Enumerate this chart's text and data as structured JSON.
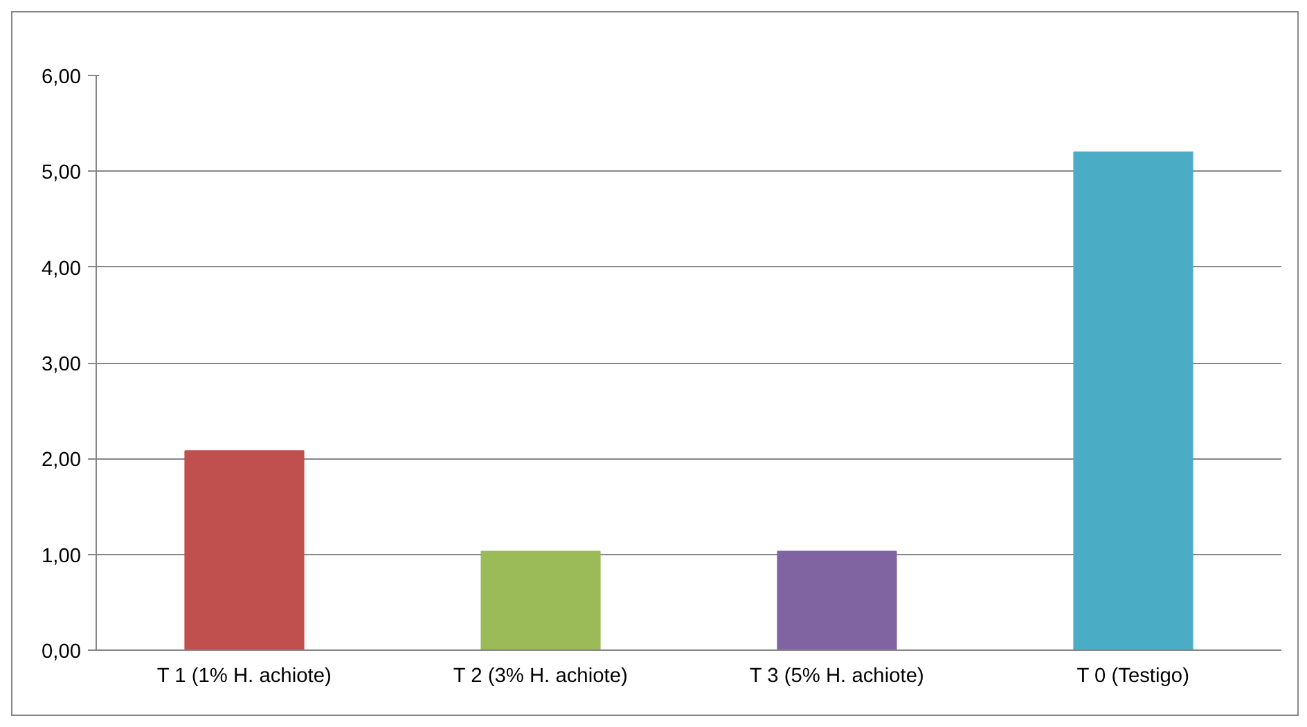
{
  "chart_data": {
    "type": "bar",
    "categories": [
      "T 1 (1% H. achiote)",
      "T 2 (3% H. achiote)",
      "T 3 (5% H. achiote)",
      "T 0 (Testigo)"
    ],
    "values": [
      2.08,
      1.03,
      1.03,
      5.2
    ],
    "colors": [
      "#c0504d",
      "#9bbb59",
      "#8064a2",
      "#4bacc6"
    ],
    "ylim": [
      0,
      6
    ],
    "yticks": [
      {
        "value": 0,
        "label": "0,00"
      },
      {
        "value": 1,
        "label": "1,00"
      },
      {
        "value": 2,
        "label": "2,00"
      },
      {
        "value": 3,
        "label": "3,00"
      },
      {
        "value": 4,
        "label": "4,00"
      },
      {
        "value": 5,
        "label": "5,00"
      },
      {
        "value": 6,
        "label": "6,00"
      }
    ],
    "grid": "y"
  }
}
